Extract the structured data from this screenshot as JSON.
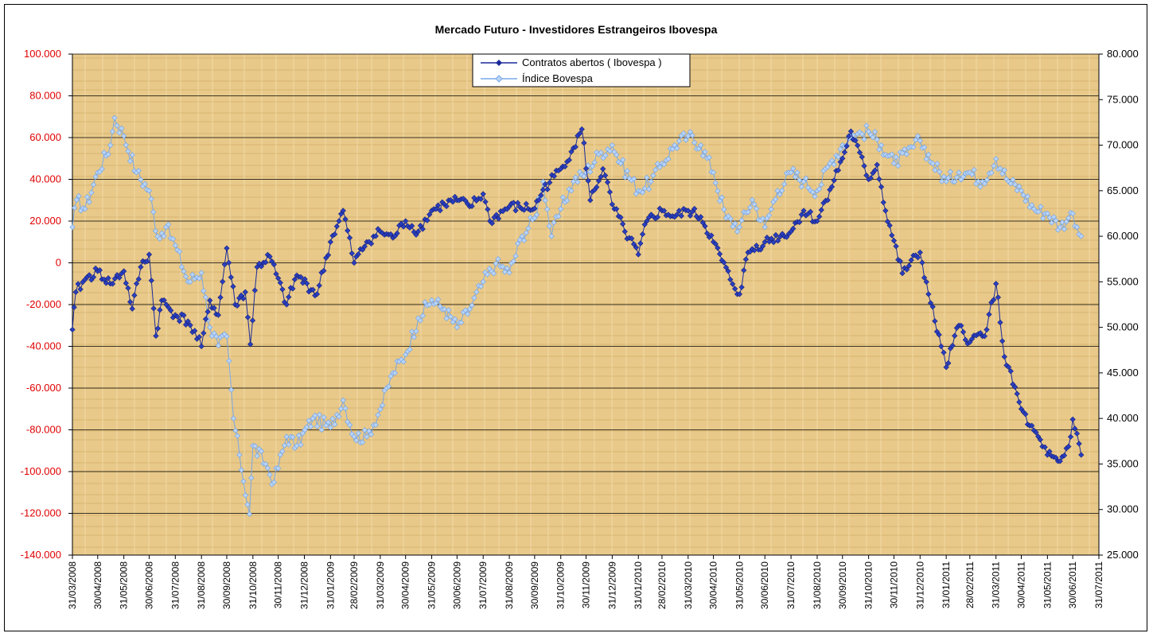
{
  "chart_data": {
    "type": "line",
    "title": "Mercado Futuro - Investidores Estrangeiros Ibovespa",
    "x_start": "31/03/2008",
    "x_end": "31/07/2011",
    "x_ticks": [
      "31/03/2008",
      "30/04/2008",
      "31/05/2008",
      "30/06/2008",
      "31/07/2008",
      "31/08/2008",
      "30/09/2008",
      "31/10/2008",
      "30/11/2008",
      "31/12/2008",
      "31/01/2009",
      "28/02/2009",
      "31/03/2009",
      "30/04/2009",
      "31/05/2009",
      "30/06/2009",
      "31/07/2009",
      "31/08/2009",
      "30/09/2009",
      "31/10/2009",
      "30/11/2009",
      "31/12/2009",
      "31/01/2010",
      "28/02/2010",
      "31/03/2010",
      "30/04/2010",
      "31/05/2010",
      "30/06/2010",
      "31/07/2010",
      "31/08/2010",
      "30/09/2010",
      "31/10/2010",
      "30/11/2010",
      "31/12/2010",
      "31/01/2011",
      "28/02/2011",
      "31/03/2011",
      "30/04/2011",
      "31/05/2011",
      "30/06/2011",
      "31/07/2011"
    ],
    "y_left": {
      "ylim": [
        -140000,
        100000
      ],
      "ticks": [
        "100.000",
        "80.000",
        "60.000",
        "40.000",
        "20.000",
        "0",
        "-20.000",
        "-40.000",
        "-60.000",
        "-80.000",
        "-100.000",
        "-120.000",
        "-140.000"
      ],
      "tick_color": "#e00000"
    },
    "y_right": {
      "ylim": [
        25000,
        80000
      ],
      "ticks": [
        "80.000",
        "75.000",
        "70.000",
        "65.000",
        "60.000",
        "55.000",
        "50.000",
        "45.000",
        "40.000",
        "35.000",
        "30.000",
        "25.000"
      ]
    },
    "grid": true,
    "legend_position": "top-center",
    "series": [
      {
        "name": "Contratos abertos ( Ibovespa )",
        "axis": "left",
        "color": "#1a2a9a",
        "marker": "diamond",
        "points": [
          [
            "31/03/2008",
            -32000
          ],
          [
            "04/04/2008",
            -14000
          ],
          [
            "15/04/2008",
            -8000
          ],
          [
            "30/04/2008",
            -4000
          ],
          [
            "15/05/2008",
            -10000
          ],
          [
            "31/05/2008",
            -4000
          ],
          [
            "10/06/2008",
            -22000
          ],
          [
            "20/06/2008",
            -2000
          ],
          [
            "30/06/2008",
            4000
          ],
          [
            "08/07/2008",
            -35000
          ],
          [
            "15/07/2008",
            -18000
          ],
          [
            "31/07/2008",
            -25000
          ],
          [
            "15/08/2008",
            -28000
          ],
          [
            "31/08/2008",
            -40000
          ],
          [
            "10/09/2008",
            -18000
          ],
          [
            "20/09/2008",
            -25000
          ],
          [
            "30/09/2008",
            7000
          ],
          [
            "10/10/2008",
            -20000
          ],
          [
            "22/10/2008",
            -14000
          ],
          [
            "28/10/2008",
            -39000
          ],
          [
            "05/11/2008",
            -2000
          ],
          [
            "20/11/2008",
            3000
          ],
          [
            "10/12/2008",
            -20000
          ],
          [
            "22/12/2008",
            -6000
          ],
          [
            "15/01/2009",
            -15000
          ],
          [
            "31/01/2009",
            10000
          ],
          [
            "10/02/2009",
            20000
          ],
          [
            "15/02/2009",
            25000
          ],
          [
            "28/02/2009",
            0
          ],
          [
            "15/03/2009",
            10000
          ],
          [
            "31/03/2009",
            15000
          ],
          [
            "15/04/2009",
            12000
          ],
          [
            "30/04/2009",
            20000
          ],
          [
            "15/05/2009",
            15000
          ],
          [
            "31/05/2009",
            25000
          ],
          [
            "15/06/2009",
            28000
          ],
          [
            "30/06/2009",
            30000
          ],
          [
            "15/07/2009",
            27000
          ],
          [
            "31/07/2009",
            33000
          ],
          [
            "08/08/2009",
            20000
          ],
          [
            "31/08/2009",
            27000
          ],
          [
            "30/09/2009",
            26000
          ],
          [
            "10/10/2009",
            35000
          ],
          [
            "31/10/2009",
            45000
          ],
          [
            "15/11/2009",
            55000
          ],
          [
            "25/11/2009",
            64000
          ],
          [
            "05/12/2009",
            30000
          ],
          [
            "20/12/2009",
            45000
          ],
          [
            "31/12/2009",
            28000
          ],
          [
            "15/01/2010",
            15000
          ],
          [
            "31/01/2010",
            4000
          ],
          [
            "10/02/2010",
            20000
          ],
          [
            "28/02/2010",
            25000
          ],
          [
            "15/03/2010",
            22000
          ],
          [
            "31/03/2010",
            25000
          ],
          [
            "15/04/2010",
            22000
          ],
          [
            "30/04/2010",
            10000
          ],
          [
            "20/05/2010",
            -8000
          ],
          [
            "31/05/2010",
            -15000
          ],
          [
            "10/06/2010",
            5000
          ],
          [
            "30/06/2010",
            10000
          ],
          [
            "31/07/2010",
            15000
          ],
          [
            "15/08/2010",
            25000
          ],
          [
            "31/08/2010",
            20000
          ],
          [
            "15/09/2010",
            35000
          ],
          [
            "30/09/2010",
            50000
          ],
          [
            "10/10/2010",
            63000
          ],
          [
            "31/10/2010",
            40000
          ],
          [
            "10/11/2010",
            47000
          ],
          [
            "20/11/2010",
            25000
          ],
          [
            "10/12/2010",
            -5000
          ],
          [
            "31/12/2010",
            5000
          ],
          [
            "10/01/2011",
            -15000
          ],
          [
            "25/01/2011",
            -40000
          ],
          [
            "31/01/2011",
            -50000
          ],
          [
            "15/02/2011",
            -30000
          ],
          [
            "28/02/2011",
            -38000
          ],
          [
            "20/03/2011",
            -32000
          ],
          [
            "31/03/2011",
            -10000
          ],
          [
            "10/04/2011",
            -45000
          ],
          [
            "30/04/2011",
            -70000
          ],
          [
            "10/05/2011",
            -78000
          ],
          [
            "25/05/2011",
            -88000
          ],
          [
            "31/05/2011",
            -92000
          ],
          [
            "15/06/2011",
            -95000
          ],
          [
            "25/06/2011",
            -88000
          ],
          [
            "30/06/2011",
            -75000
          ],
          [
            "10/07/2011",
            -92000
          ]
        ]
      },
      {
        "name": "Índice Bovespa",
        "axis": "right",
        "color": "#7aa8e8",
        "marker": "diamond",
        "points": [
          [
            "31/03/2008",
            61000
          ],
          [
            "05/04/2008",
            64000
          ],
          [
            "15/04/2008",
            63000
          ],
          [
            "30/04/2008",
            67000
          ],
          [
            "15/05/2008",
            70000
          ],
          [
            "20/05/2008",
            73000
          ],
          [
            "31/05/2008",
            71000
          ],
          [
            "15/06/2008",
            67000
          ],
          [
            "30/06/2008",
            65000
          ],
          [
            "10/07/2008",
            60000
          ],
          [
            "20/07/2008",
            61000
          ],
          [
            "31/07/2008",
            59000
          ],
          [
            "15/08/2008",
            55000
          ],
          [
            "31/08/2008",
            56000
          ],
          [
            "10/09/2008",
            50000
          ],
          [
            "20/09/2008",
            48000
          ],
          [
            "30/09/2008",
            49000
          ],
          [
            "08/10/2008",
            40000
          ],
          [
            "15/10/2008",
            36000
          ],
          [
            "27/10/2008",
            29500
          ],
          [
            "31/10/2008",
            37000
          ],
          [
            "15/11/2008",
            35000
          ],
          [
            "25/11/2008",
            33000
          ],
          [
            "10/12/2008",
            38000
          ],
          [
            "22/12/2008",
            37000
          ],
          [
            "10/01/2009",
            40000
          ],
          [
            "31/01/2009",
            39000
          ],
          [
            "15/02/2009",
            42000
          ],
          [
            "28/02/2009",
            38000
          ],
          [
            "15/03/2009",
            38000
          ],
          [
            "31/03/2009",
            41000
          ],
          [
            "15/04/2009",
            45000
          ],
          [
            "30/04/2009",
            47000
          ],
          [
            "15/05/2009",
            51000
          ],
          [
            "31/05/2009",
            53000
          ],
          [
            "15/06/2009",
            52000
          ],
          [
            "30/06/2009",
            50000
          ],
          [
            "15/07/2009",
            52000
          ],
          [
            "31/07/2009",
            55000
          ],
          [
            "15/08/2009",
            57000
          ],
          [
            "31/08/2009",
            56000
          ],
          [
            "15/09/2009",
            60000
          ],
          [
            "30/09/2009",
            62000
          ],
          [
            "10/10/2009",
            66000
          ],
          [
            "20/10/2009",
            60000
          ],
          [
            "31/10/2009",
            63000
          ],
          [
            "15/11/2009",
            66000
          ],
          [
            "30/11/2009",
            67000
          ],
          [
            "15/12/2009",
            69000
          ],
          [
            "31/12/2009",
            70000
          ],
          [
            "10/01/2010",
            68000
          ],
          [
            "31/01/2010",
            65000
          ],
          [
            "15/02/2010",
            66000
          ],
          [
            "28/02/2010",
            68000
          ],
          [
            "15/03/2010",
            70000
          ],
          [
            "31/03/2010",
            71000
          ],
          [
            "15/04/2010",
            70000
          ],
          [
            "30/04/2010",
            67000
          ],
          [
            "15/05/2010",
            62000
          ],
          [
            "31/05/2010",
            61000
          ],
          [
            "15/06/2010",
            64000
          ],
          [
            "30/06/2010",
            61000
          ],
          [
            "15/07/2010",
            65000
          ],
          [
            "31/07/2010",
            67000
          ],
          [
            "15/08/2010",
            66000
          ],
          [
            "31/08/2010",
            65000
          ],
          [
            "15/09/2010",
            68000
          ],
          [
            "30/09/2010",
            70000
          ],
          [
            "10/10/2010",
            71000
          ],
          [
            "31/10/2010",
            71500
          ],
          [
            "15/11/2010",
            70000
          ],
          [
            "30/11/2010",
            68000
          ],
          [
            "15/12/2010",
            69000
          ],
          [
            "31/12/2010",
            70500
          ],
          [
            "15/01/2011",
            68000
          ],
          [
            "31/01/2011",
            66000
          ],
          [
            "15/02/2011",
            67000
          ],
          [
            "28/02/2011",
            67000
          ],
          [
            "15/03/2011",
            66000
          ],
          [
            "31/03/2011",
            68500
          ],
          [
            "15/04/2011",
            66000
          ],
          [
            "30/04/2011",
            65000
          ],
          [
            "15/05/2011",
            63000
          ],
          [
            "31/05/2011",
            62500
          ],
          [
            "15/06/2011",
            61000
          ],
          [
            "25/06/2011",
            62000
          ],
          [
            "30/06/2011",
            62500
          ],
          [
            "10/07/2011",
            60000
          ]
        ]
      }
    ]
  }
}
